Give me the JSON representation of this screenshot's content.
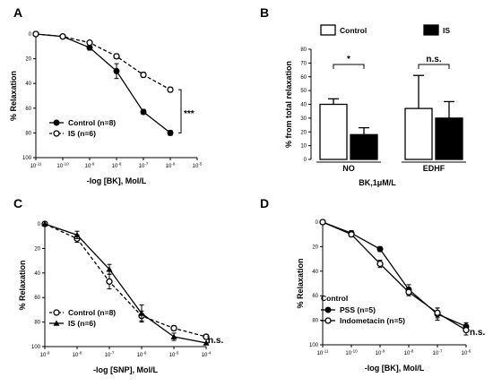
{
  "chart_data": [
    {
      "panel": "A",
      "type": "line",
      "xlabel": "-log [BK], Mol/L",
      "ylabel": "% Relaxation",
      "x_tick_exponents": [
        -11,
        -10,
        -9,
        -8,
        -7,
        -6,
        -5
      ],
      "x_tick_base": "10",
      "x_range_exponent": [
        -11,
        -5
      ],
      "yticks": [
        0,
        20,
        40,
        60,
        80,
        100
      ],
      "ylim": [
        100,
        0
      ],
      "y_inverted": true,
      "series": [
        {
          "name": "Control (n=8)",
          "marker": "filled-circle",
          "line": "solid",
          "x_exponent": [
            -11,
            -10,
            -9,
            -8,
            -7,
            -6
          ],
          "y": [
            0,
            2,
            11,
            30,
            63,
            80
          ],
          "err": [
            1,
            1,
            2,
            6,
            2,
            2
          ]
        },
        {
          "name": "IS (n=6)",
          "marker": "open-circle",
          "line": "dashed",
          "x_exponent": [
            -11,
            -10,
            -9,
            -8,
            -7,
            -6
          ],
          "y": [
            0,
            2,
            7,
            18,
            33,
            45
          ],
          "err": [
            1,
            1,
            1,
            2,
            2,
            2
          ]
        }
      ],
      "annotation": "***"
    },
    {
      "panel": "B",
      "type": "bar",
      "ylabel": "% from total relaxation",
      "xlabel": "BK,1μM/L",
      "yticks": [
        0,
        10,
        20,
        30,
        40,
        50,
        60,
        70,
        80
      ],
      "ylim": [
        0,
        80
      ],
      "groups": [
        "NO",
        "EDHF"
      ],
      "series": [
        {
          "name": "Control",
          "fill": "#ffffff",
          "values": [
            40,
            37
          ],
          "err": [
            4,
            24
          ]
        },
        {
          "name": "IS",
          "fill": "#000000",
          "values": [
            18,
            30
          ],
          "err": [
            5,
            12
          ]
        }
      ],
      "annotations": [
        "*",
        "n.s."
      ]
    },
    {
      "panel": "C",
      "type": "line",
      "xlabel": "-log [SNP], Mol/L",
      "ylabel": "% Relaxation",
      "x_tick_exponents": [
        -9,
        -8,
        -7,
        -6,
        -5,
        -4
      ],
      "x_tick_base": "10",
      "x_range_exponent": [
        -9,
        -4
      ],
      "yticks": [
        0,
        20,
        40,
        60,
        80,
        100
      ],
      "ylim": [
        100,
        0
      ],
      "y_inverted": true,
      "series": [
        {
          "name": "Control (n=8)",
          "marker": "open-circle",
          "line": "dashed",
          "x_exponent": [
            -9,
            -8,
            -7,
            -6,
            -5,
            -4
          ],
          "y": [
            0,
            12,
            47,
            75,
            85,
            92
          ],
          "err": [
            1,
            3,
            6,
            4,
            2,
            2
          ]
        },
        {
          "name": "IS (n=6)",
          "marker": "filled-triangle",
          "line": "solid",
          "x_exponent": [
            -9,
            -8,
            -7,
            -6,
            -5,
            -4
          ],
          "y": [
            0,
            9,
            37,
            73,
            92,
            97
          ],
          "err": [
            1,
            3,
            4,
            7,
            3,
            1
          ]
        }
      ],
      "annotation": "n.s."
    },
    {
      "panel": "D",
      "type": "line",
      "xlabel": "-log [BK], Mol/L",
      "ylabel": "% Relaxation",
      "x_tick_exponents": [
        -11,
        -10,
        -9,
        -8,
        -7,
        -6
      ],
      "x_tick_base": "10",
      "x_range_exponent": [
        -11,
        -6
      ],
      "yticks": [
        0,
        20,
        40,
        60,
        80,
        100
      ],
      "ylim": [
        100,
        0
      ],
      "y_inverted": true,
      "legend_title": "Control",
      "series": [
        {
          "name": "PSS (n=5)",
          "marker": "filled-circle",
          "line": "solid",
          "x_exponent": [
            -11,
            -10,
            -9,
            -8,
            -7,
            -6
          ],
          "y": [
            0,
            9,
            22,
            55,
            75,
            85
          ],
          "err": [
            1,
            2,
            2,
            4,
            5,
            3
          ]
        },
        {
          "name": "Indometacin (n=5)",
          "marker": "open-circle",
          "line": "solid",
          "x_exponent": [
            -11,
            -10,
            -9,
            -8,
            -7,
            -6
          ],
          "y": [
            0,
            10,
            34,
            57,
            74,
            88
          ],
          "err": [
            1,
            2,
            3,
            3,
            4,
            4
          ]
        }
      ],
      "annotation": "n.s."
    }
  ]
}
